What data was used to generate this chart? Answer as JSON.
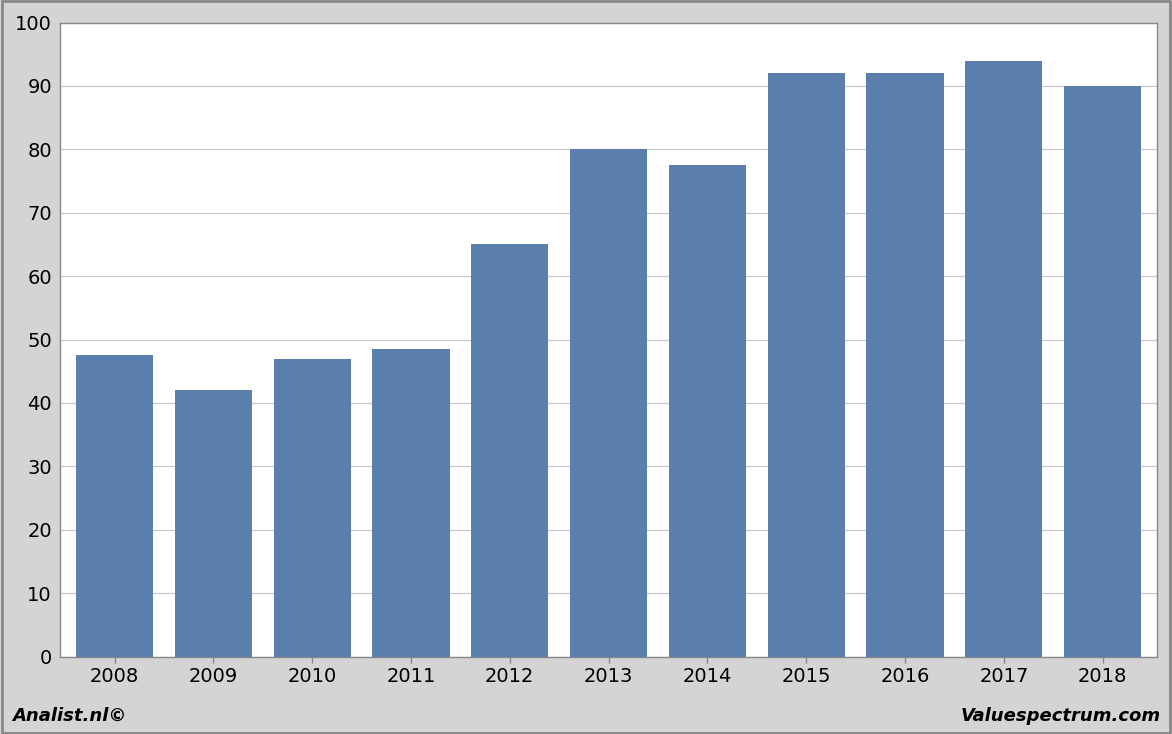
{
  "years": [
    2008,
    2009,
    2010,
    2011,
    2012,
    2013,
    2014,
    2015,
    2016,
    2017,
    2018
  ],
  "values": [
    47.5,
    42,
    47,
    48.5,
    65,
    80,
    77.5,
    92,
    92,
    94,
    90
  ],
  "bar_color": "#5b7fad",
  "background_color": "#d4d4d4",
  "plot_bg_color": "#ffffff",
  "ylim": [
    0,
    100
  ],
  "yticks": [
    0,
    10,
    20,
    30,
    40,
    50,
    60,
    70,
    80,
    90,
    100
  ],
  "grid_color": "#c8c8c8",
  "footer_left": "Analist.nl©",
  "footer_right": "Valuespectrum.com",
  "border_color": "#888888",
  "tick_color": "#888888"
}
